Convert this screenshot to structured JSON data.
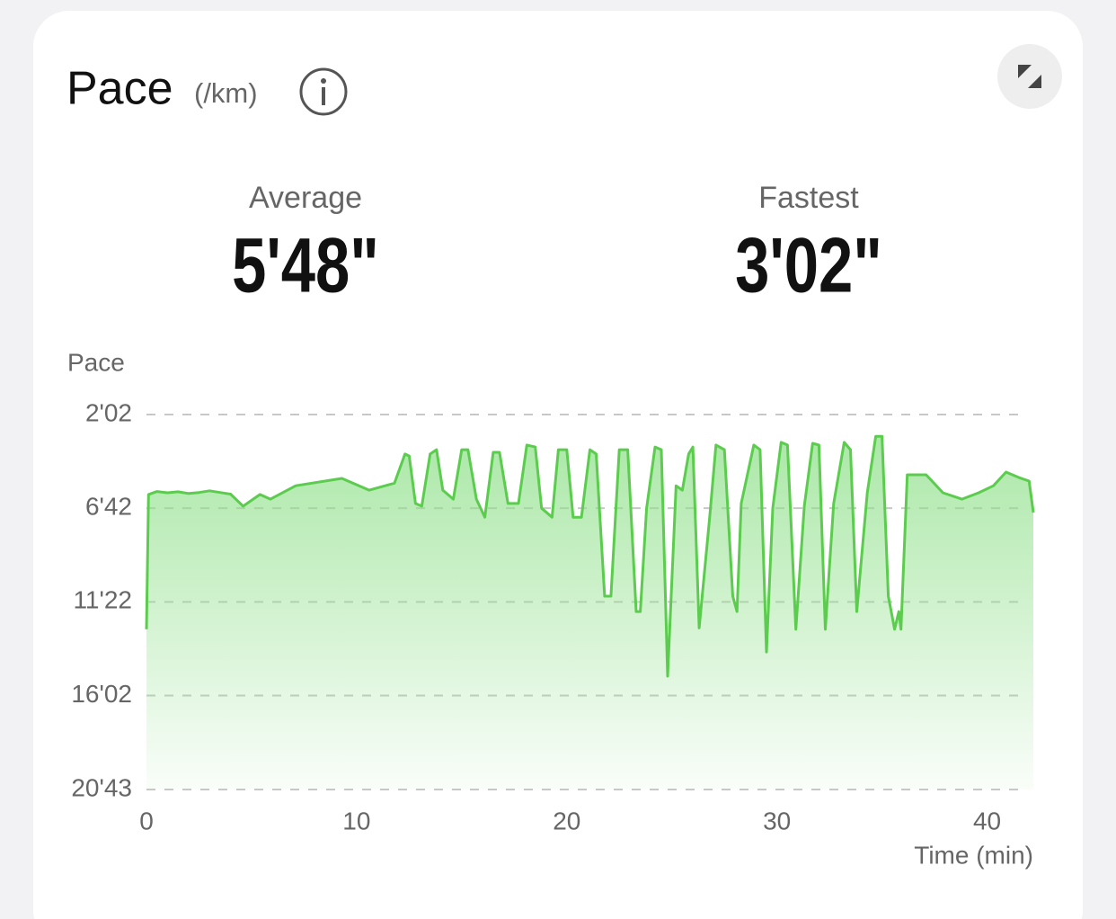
{
  "header": {
    "title": "Pace",
    "unit": "(/km)"
  },
  "stats": [
    {
      "label": "Average",
      "value": "5'48\""
    },
    {
      "label": "Fastest",
      "value": "3'02\""
    }
  ],
  "chart_data": {
    "type": "line",
    "y_label": "Pace",
    "x_label": "Time (min)",
    "x": [
      0,
      0.1,
      0.5,
      1,
      1.5,
      2,
      2.5,
      3,
      3.5,
      4,
      4.6,
      5.4,
      5.9,
      7.1,
      9.3,
      10.6,
      11.8,
      12.3,
      12.5,
      12.8,
      13.1,
      13.5,
      13.8,
      14.1,
      14.6,
      15.0,
      15.3,
      15.7,
      16.1,
      16.5,
      16.8,
      17.2,
      17.7,
      18.1,
      18.5,
      18.8,
      19.3,
      19.6,
      20.0,
      20.3,
      20.7,
      21.1,
      21.4,
      21.8,
      22.1,
      22.5,
      22.9,
      23.3,
      23.5,
      23.8,
      24.2,
      24.5,
      24.8,
      25.2,
      25.5,
      25.8,
      26.0,
      26.3,
      26.8,
      27.1,
      27.5,
      27.9,
      28.1,
      28.3,
      28.9,
      29.2,
      29.5,
      29.8,
      30.2,
      30.5,
      30.9,
      31.3,
      31.7,
      32.0,
      32.3,
      32.7,
      33.2,
      33.5,
      33.8,
      34.3,
      34.7,
      35.0,
      35.3,
      35.6,
      35.8,
      35.9,
      36.2,
      37.1,
      37.9,
      38.8,
      39.6,
      40.3,
      40.9,
      41.5,
      42.0,
      42.2
    ],
    "series": [
      {
        "name": "Pace",
        "color": "#5ccc4f",
        "values": [
          764,
          361,
          352,
          356,
          353,
          358,
          355,
          350,
          355,
          360,
          396,
          361,
          375,
          335,
          313,
          348,
          327,
          240,
          246,
          388,
          396,
          240,
          227,
          348,
          375,
          227,
          227,
          375,
          429,
          235,
          235,
          388,
          388,
          213,
          219,
          402,
          429,
          227,
          227,
          429,
          429,
          227,
          240,
          665,
          665,
          227,
          227,
          711,
          711,
          402,
          219,
          227,
          904,
          335,
          348,
          240,
          219,
          760,
          429,
          213,
          227,
          665,
          711,
          388,
          213,
          227,
          832,
          402,
          205,
          213,
          764,
          396,
          208,
          213,
          764,
          388,
          205,
          227,
          711,
          356,
          187,
          187,
          665,
          764,
          711,
          764,
          302,
          302,
          356,
          375,
          356,
          335,
          294,
          310,
          321,
          415
        ]
      }
    ],
    "xlim": [
      0,
      42.2
    ],
    "xticks": [
      0,
      10,
      20,
      30,
      40
    ],
    "ylim": [
      1243,
      122
    ],
    "invert_y": true,
    "yticks": [
      {
        "value": 122,
        "label": "2'02"
      },
      {
        "value": 402,
        "label": "6'42"
      },
      {
        "value": 682,
        "label": "11'22"
      },
      {
        "value": 962,
        "label": "16'02"
      },
      {
        "value": 1243,
        "label": "20'43"
      }
    ],
    "grid": true
  }
}
